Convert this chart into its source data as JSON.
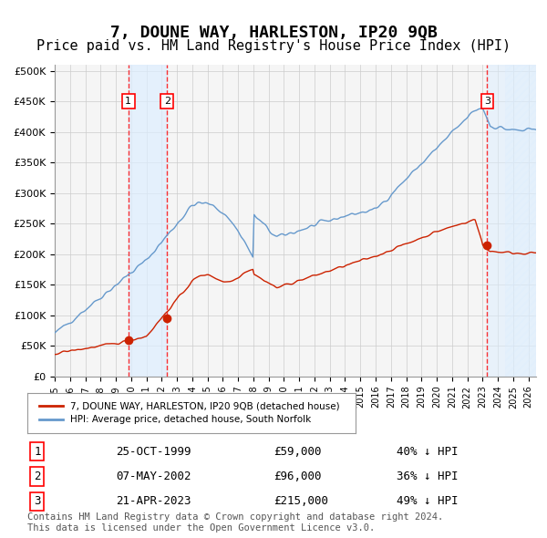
{
  "title": "7, DOUNE WAY, HARLESTON, IP20 9QB",
  "subtitle": "Price paid vs. HM Land Registry's House Price Index (HPI)",
  "title_fontsize": 13,
  "subtitle_fontsize": 11,
  "ylabel_ticks": [
    "£0",
    "£50K",
    "£100K",
    "£150K",
    "£200K",
    "£250K",
    "£300K",
    "£350K",
    "£400K",
    "£450K",
    "£500K"
  ],
  "ytick_values": [
    0,
    50000,
    100000,
    150000,
    200000,
    250000,
    300000,
    350000,
    400000,
    450000,
    500000
  ],
  "ylim": [
    0,
    510000
  ],
  "xlim_start": 1995.0,
  "xlim_end": 2026.5,
  "sale_dates": [
    1999.82,
    2002.35,
    2023.3
  ],
  "sale_prices": [
    59000,
    96000,
    215000
  ],
  "sale_labels": [
    "1",
    "2",
    "3"
  ],
  "hpi_color": "#6699cc",
  "price_color": "#cc2200",
  "grid_color": "#cccccc",
  "bg_color": "#ffffff",
  "plot_bg_color": "#f5f5f5",
  "shade_color": "#ddeeff",
  "hatch_color": "#aabbcc",
  "legend_label_price": "7, DOUNE WAY, HARLESTON, IP20 9QB (detached house)",
  "legend_label_hpi": "HPI: Average price, detached house, South Norfolk",
  "table_data": [
    [
      "1",
      "25-OCT-1999",
      "£59,000",
      "40% ↓ HPI"
    ],
    [
      "2",
      "07-MAY-2002",
      "£96,000",
      "36% ↓ HPI"
    ],
    [
      "3",
      "21-APR-2023",
      "£215,000",
      "49% ↓ HPI"
    ]
  ],
  "footer": "Contains HM Land Registry data © Crown copyright and database right 2024.\nThis data is licensed under the Open Government Licence v3.0.",
  "footer_fontsize": 7.5
}
